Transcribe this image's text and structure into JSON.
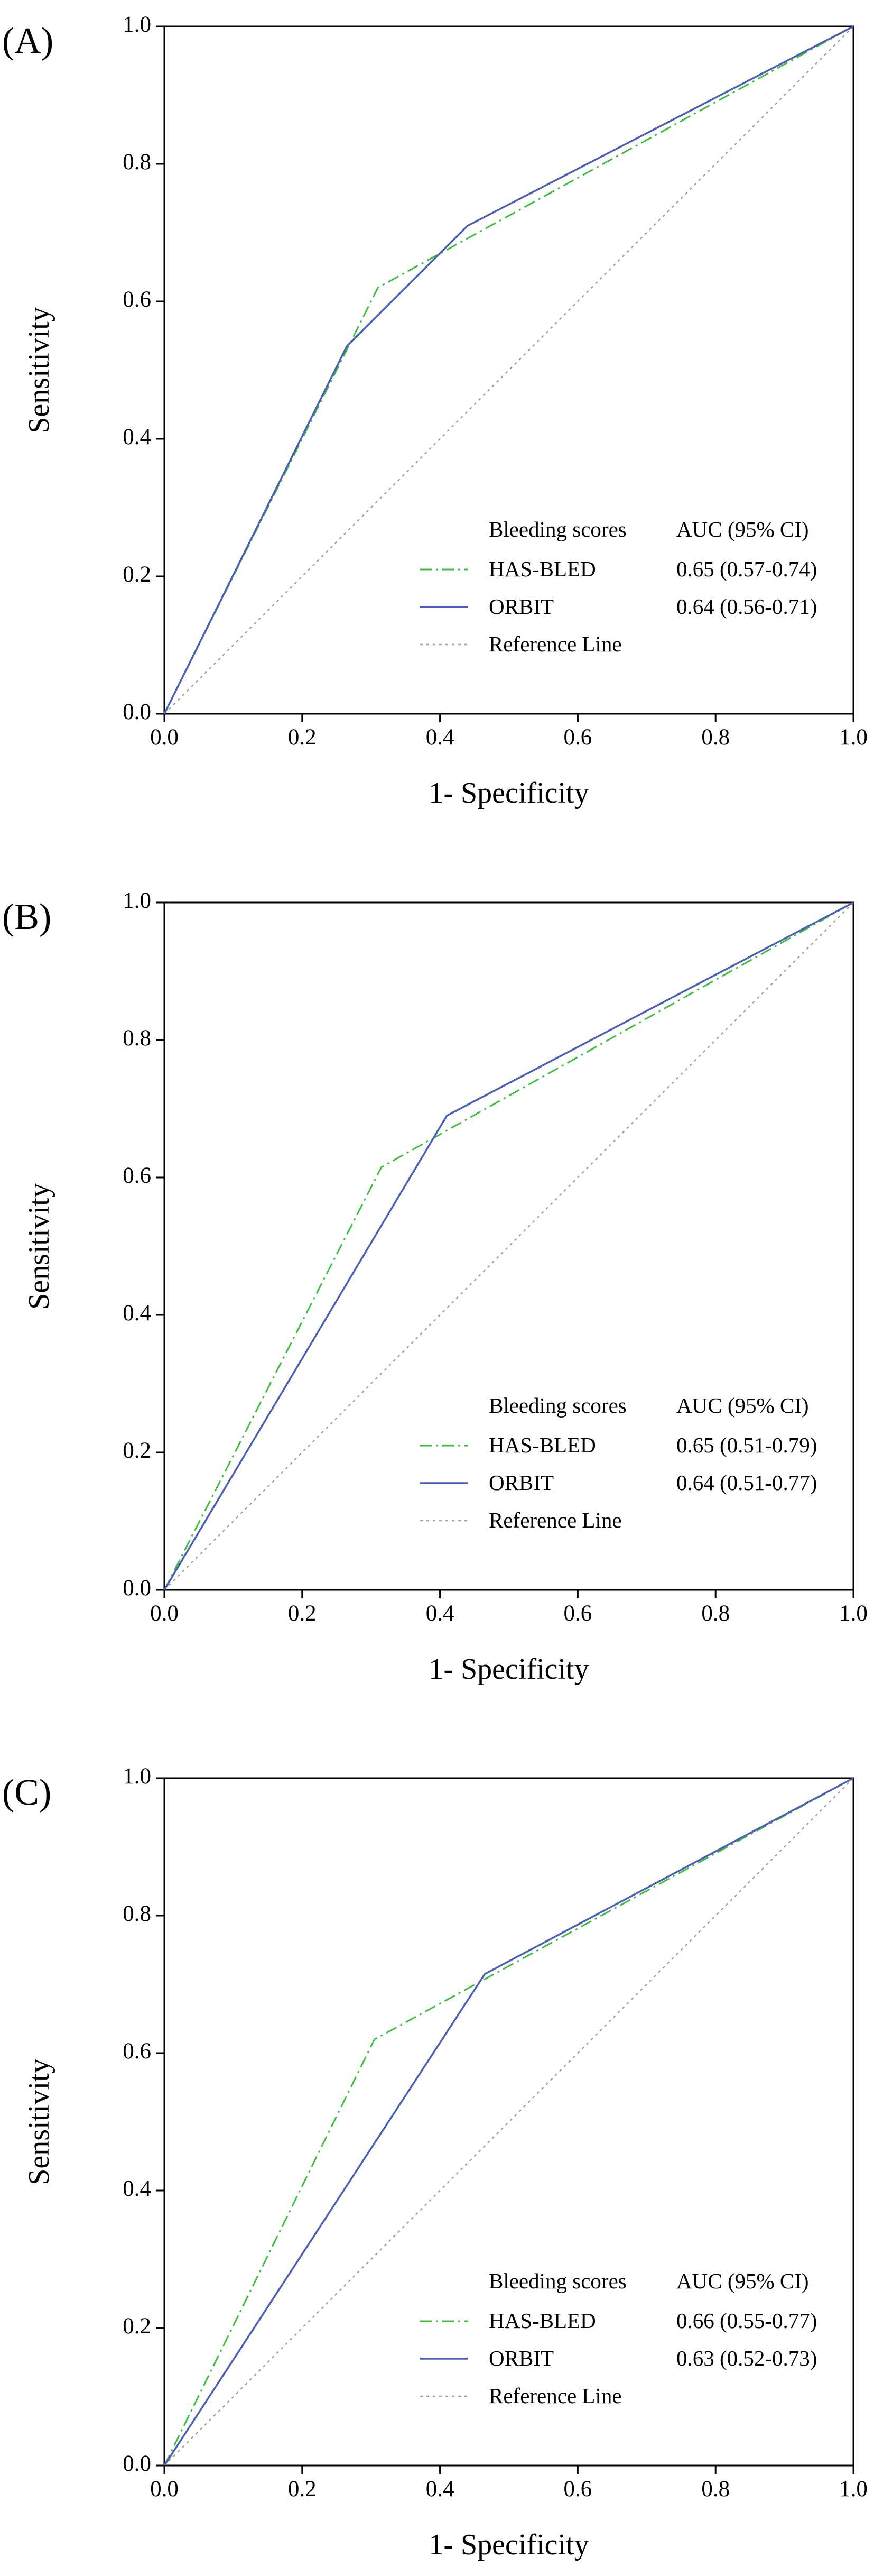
{
  "chart_data": [
    {
      "panel_label": "(A)",
      "type": "line",
      "xlabel": "1- Specificity",
      "ylabel": "Sensitivity",
      "xlim": [
        0.0,
        1.0
      ],
      "ylim": [
        0.0,
        1.0
      ],
      "x_ticks": [
        "0.0",
        "0.2",
        "0.4",
        "0.6",
        "0.8",
        "1.0"
      ],
      "y_ticks": [
        "0.0",
        "0.2",
        "0.4",
        "0.6",
        "0.8",
        "1.0"
      ],
      "grid": false,
      "legend_position": "bottom-right",
      "legend_header": {
        "label": "Bleeding scores",
        "value": "AUC (95% CI)"
      },
      "series": [
        {
          "name": "HAS-BLED",
          "auc": "0.65 (0.57-0.74)",
          "color": "#3cbf3c",
          "style": "dash-dot",
          "x": [
            0.0,
            0.31,
            1.0
          ],
          "y": [
            0.0,
            0.62,
            1.0
          ]
        },
        {
          "name": "ORBIT",
          "auc": "0.64 (0.56-0.71)",
          "color": "#4a5fb5",
          "style": "solid",
          "x": [
            0.0,
            0.265,
            0.44,
            1.0
          ],
          "y": [
            0.0,
            0.535,
            0.71,
            1.0
          ]
        },
        {
          "name": "Reference Line",
          "auc": "",
          "color": "#a0a0a0",
          "style": "dotted",
          "x": [
            0.0,
            1.0
          ],
          "y": [
            0.0,
            1.0
          ]
        }
      ]
    },
    {
      "panel_label": "(B)",
      "type": "line",
      "xlabel": "1- Specificity",
      "ylabel": "Sensitivity",
      "xlim": [
        0.0,
        1.0
      ],
      "ylim": [
        0.0,
        1.0
      ],
      "x_ticks": [
        "0.0",
        "0.2",
        "0.4",
        "0.6",
        "0.8",
        "1.0"
      ],
      "y_ticks": [
        "0.0",
        "0.2",
        "0.4",
        "0.6",
        "0.8",
        "1.0"
      ],
      "grid": false,
      "legend_position": "bottom-right",
      "legend_header": {
        "label": "Bleeding scores",
        "value": "AUC (95% CI)"
      },
      "series": [
        {
          "name": "HAS-BLED",
          "auc": "0.65 (0.51-0.79)",
          "color": "#3cbf3c",
          "style": "dash-dot",
          "x": [
            0.0,
            0.315,
            1.0
          ],
          "y": [
            0.0,
            0.615,
            1.0
          ]
        },
        {
          "name": "ORBIT",
          "auc": "0.64 (0.51-0.77)",
          "color": "#4a5fb5",
          "style": "solid",
          "x": [
            0.0,
            0.41,
            1.0
          ],
          "y": [
            0.0,
            0.69,
            1.0
          ]
        },
        {
          "name": "Reference Line",
          "auc": "",
          "color": "#a0a0a0",
          "style": "dotted",
          "x": [
            0.0,
            1.0
          ],
          "y": [
            0.0,
            1.0
          ]
        }
      ]
    },
    {
      "panel_label": "(C)",
      "type": "line",
      "xlabel": "1- Specificity",
      "ylabel": "Sensitivity",
      "xlim": [
        0.0,
        1.0
      ],
      "ylim": [
        0.0,
        1.0
      ],
      "x_ticks": [
        "0.0",
        "0.2",
        "0.4",
        "0.6",
        "0.8",
        "1.0"
      ],
      "y_ticks": [
        "0.0",
        "0.2",
        "0.4",
        "0.6",
        "0.8",
        "1.0"
      ],
      "grid": false,
      "legend_position": "bottom-right",
      "legend_header": {
        "label": "Bleeding scores",
        "value": "AUC (95% CI)"
      },
      "series": [
        {
          "name": "HAS-BLED",
          "auc": "0.66 (0.55-0.77)",
          "color": "#3cbf3c",
          "style": "dash-dot",
          "x": [
            0.0,
            0.305,
            1.0
          ],
          "y": [
            0.0,
            0.62,
            1.0
          ]
        },
        {
          "name": "ORBIT",
          "auc": "0.63 (0.52-0.73)",
          "color": "#4a5fb5",
          "style": "solid",
          "x": [
            0.0,
            0.465,
            1.0
          ],
          "y": [
            0.0,
            0.715,
            1.0
          ]
        },
        {
          "name": "Reference Line",
          "auc": "",
          "color": "#a0a0a0",
          "style": "dotted",
          "x": [
            0.0,
            1.0
          ],
          "y": [
            0.0,
            1.0
          ]
        }
      ]
    }
  ]
}
